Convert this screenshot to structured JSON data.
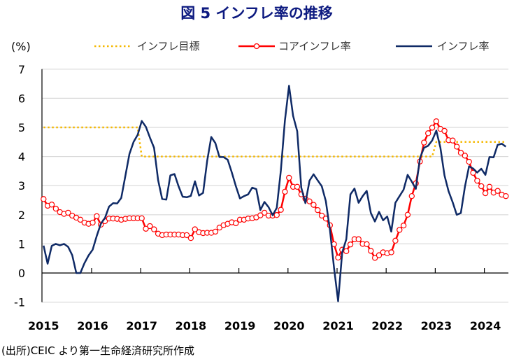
{
  "chart_data": {
    "type": "line",
    "title": "図 5  インフレ率の推移",
    "ylabel": "(%)",
    "source": "(出所)CEIC より第一生命経済研究所作成",
    "ylim": [
      -1,
      7
    ],
    "yticks": [
      "7",
      "6",
      "5",
      "4",
      "3",
      "2",
      "1",
      "0",
      "-1"
    ],
    "xticks": [
      "2015",
      "2016",
      "2017",
      "2018",
      "2019",
      "2020",
      "2021",
      "2022",
      "2023",
      "2024"
    ],
    "x_start": "2015-01",
    "x_end": "2024-06",
    "x_frequency": "monthly",
    "grid": true,
    "legend_placement": "top",
    "colors": {
      "target": "#f5b800",
      "core": "#ff0000",
      "headline": "#0f2a66",
      "title": "#0d1a80",
      "negative_tick": "#ff0000"
    },
    "series": [
      {
        "name": "インフレ目標",
        "style": "dotted",
        "values": [
          5,
          5,
          5,
          5,
          5,
          5,
          5,
          5,
          5,
          5,
          5,
          5,
          5,
          5,
          5,
          5,
          5,
          5,
          5,
          5,
          5,
          5,
          5,
          5,
          4,
          4,
          4,
          4,
          4,
          4,
          4,
          4,
          4,
          4,
          4,
          4,
          4,
          4,
          4,
          4,
          4,
          4,
          4,
          4,
          4,
          4,
          4,
          4,
          4,
          4,
          4,
          4,
          4,
          4,
          4,
          4,
          4,
          4,
          4,
          4,
          4,
          4,
          4,
          4,
          4,
          4,
          4,
          4,
          4,
          4,
          4,
          4,
          4,
          4,
          4,
          4,
          4,
          4,
          4,
          4,
          4,
          4,
          4,
          4,
          4,
          4,
          4,
          4,
          4,
          4,
          4,
          4,
          4,
          4,
          4,
          4,
          4.5,
          4.5,
          4.5,
          4.5,
          4.5,
          4.5,
          4.5,
          4.5,
          4.5,
          4.5,
          4.5,
          4.5,
          4.5,
          4.5,
          4.5,
          4.5,
          4.5,
          4.5
        ]
      },
      {
        "name": "コアインフレ率",
        "style": "line-markers",
        "values": [
          2.54,
          2.31,
          2.35,
          2.21,
          2.09,
          2.03,
          2.07,
          1.97,
          1.9,
          1.83,
          1.73,
          1.69,
          1.73,
          1.95,
          1.66,
          1.78,
          1.87,
          1.87,
          1.86,
          1.83,
          1.86,
          1.88,
          1.88,
          1.88,
          1.88,
          1.52,
          1.61,
          1.5,
          1.35,
          1.3,
          1.32,
          1.32,
          1.32,
          1.32,
          1.3,
          1.3,
          1.2,
          1.5,
          1.4,
          1.37,
          1.38,
          1.38,
          1.42,
          1.56,
          1.64,
          1.69,
          1.74,
          1.71,
          1.83,
          1.83,
          1.87,
          1.88,
          1.91,
          1.98,
          2.07,
          1.97,
          1.97,
          1.99,
          2.17,
          2.79,
          3.27,
          2.96,
          2.96,
          2.7,
          2.55,
          2.46,
          2.34,
          2.16,
          1.97,
          1.87,
          1.64,
          0.99,
          0.53,
          0.8,
          0.75,
          0.98,
          1.16,
          1.16,
          1.0,
          0.99,
          0.76,
          0.52,
          0.61,
          0.71,
          0.68,
          0.71,
          1.11,
          1.48,
          1.63,
          2.0,
          2.64,
          3.08,
          3.83,
          4.48,
          4.8,
          4.99,
          5.21,
          4.95,
          4.88,
          4.56,
          4.55,
          4.34,
          4.13,
          4.03,
          3.82,
          3.44,
          3.17,
          2.98,
          2.74,
          2.96,
          2.76,
          2.82,
          2.69,
          2.64
        ]
      },
      {
        "name": "インフレ率",
        "style": "line",
        "values": [
          0.94,
          0.32,
          0.93,
          1.0,
          0.95,
          1.0,
          0.9,
          0.61,
          0.0,
          0.0,
          0.34,
          0.6,
          0.8,
          1.27,
          1.69,
          1.89,
          2.28,
          2.4,
          2.39,
          2.58,
          3.34,
          4.09,
          4.5,
          4.74,
          5.22,
          5.02,
          4.65,
          4.3,
          3.19,
          2.54,
          2.52,
          3.35,
          3.4,
          2.98,
          2.62,
          2.6,
          2.65,
          3.15,
          2.66,
          2.75,
          3.86,
          4.67,
          4.46,
          3.98,
          3.98,
          3.89,
          3.46,
          2.98,
          2.56,
          2.64,
          2.7,
          2.93,
          2.88,
          2.16,
          2.44,
          2.26,
          1.98,
          2.24,
          3.52,
          5.23,
          6.43,
          5.4,
          4.87,
          2.93,
          2.4,
          3.17,
          3.39,
          3.18,
          2.98,
          2.47,
          1.48,
          0.19,
          -0.97,
          0.7,
          1.16,
          2.7,
          2.9,
          2.41,
          2.64,
          2.82,
          2.06,
          1.77,
          2.1,
          1.81,
          1.94,
          1.42,
          2.41,
          2.64,
          2.86,
          3.37,
          3.14,
          2.89,
          3.94,
          4.3,
          4.37,
          4.55,
          4.89,
          4.31,
          3.35,
          2.81,
          2.43,
          2.0,
          2.06,
          2.96,
          3.66,
          3.59,
          3.45,
          3.58,
          3.37,
          3.98,
          3.97,
          4.4,
          4.44,
          4.34
        ]
      }
    ]
  }
}
